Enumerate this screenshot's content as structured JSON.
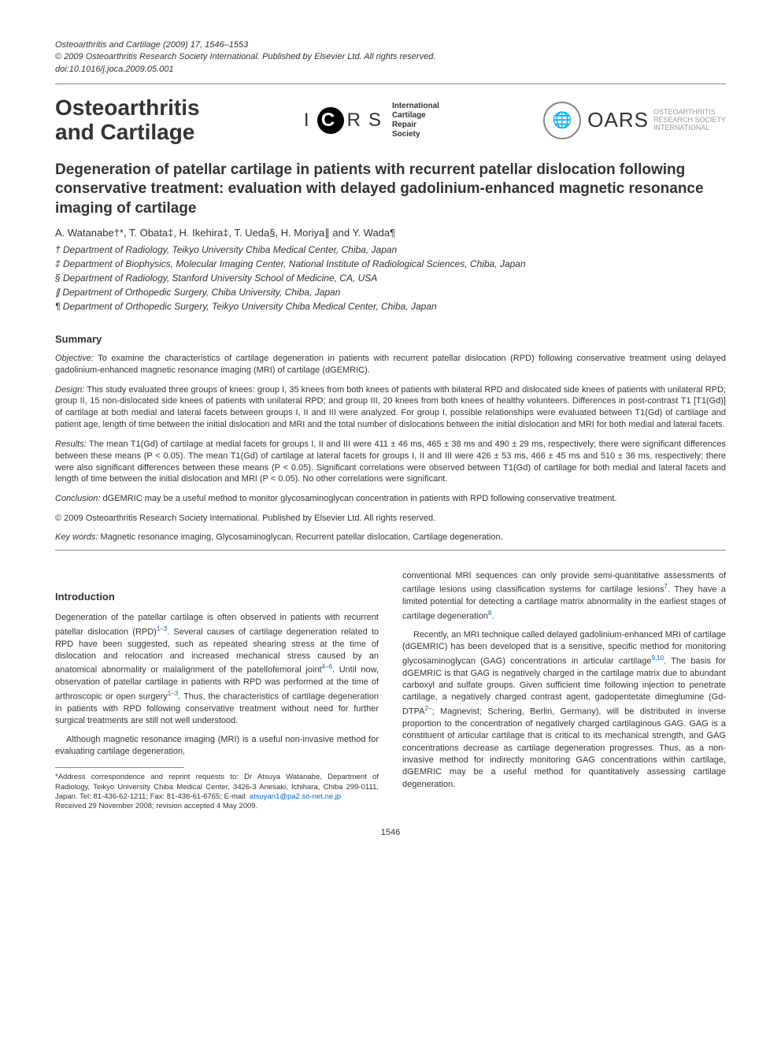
{
  "meta": {
    "citation": "Osteoarthritis and Cartilage (2009) 17, 1546–1553",
    "copyright": "© 2009 Osteoarthritis Research Society International. Published by Elsevier Ltd. All rights reserved.",
    "doi": "doi:10.1016/j.joca.2009.05.001"
  },
  "masthead": {
    "journal_line1": "Osteoarthritis",
    "journal_line2": "and Cartilage",
    "icrs_i": "I",
    "icrs_c": "C",
    "icrs_r": "R",
    "icrs_s": "S",
    "icrs_full_1": "International",
    "icrs_full_2": "Cartilage",
    "icrs_full_3": "Repair",
    "icrs_full_4": "Society",
    "oarsi_globe": "🌐",
    "oarsi_big": "OARS",
    "oarsi_small_1": "OSTEOARTHRITIS",
    "oarsi_small_2": "RESEARCH SOCIETY",
    "oarsi_small_3": "INTERNATIONAL"
  },
  "article": {
    "title": "Degeneration of patellar cartilage in patients with recurrent patellar dislocation following conservative treatment: evaluation with delayed gadolinium-enhanced magnetic resonance imaging of cartilage",
    "authors": "A. Watanabe†*, T. Obata‡, H. Ikehira‡, T. Ueda§, H. Moriya∥ and Y. Wada¶",
    "aff1": "† Department of Radiology, Teikyo University Chiba Medical Center, Chiba, Japan",
    "aff2": "‡ Department of Biophysics, Molecular Imaging Center, National Institute of Radiological Sciences, Chiba, Japan",
    "aff3": "§ Department of Radiology, Stanford University School of Medicine, CA, USA",
    "aff4": "∥ Department of Orthopedic Surgery, Chiba University, Chiba, Japan",
    "aff5": "¶ Department of Orthopedic Surgery, Teikyo University Chiba Medical Center, Chiba, Japan"
  },
  "summary": {
    "heading": "Summary",
    "objective_label": "Objective:",
    "objective": " To examine the characteristics of cartilage degeneration in patients with recurrent patellar dislocation (RPD) following conservative treatment using delayed gadolinium-enhanced magnetic resonance imaging (MRI) of cartilage (dGEMRIC).",
    "design_label": "Design:",
    "design": " This study evaluated three groups of knees: group I, 35 knees from both knees of patients with bilateral RPD and dislocated side knees of patients with unilateral RPD; group II, 15 non-dislocated side knees of patients with unilateral RPD; and group III, 20 knees from both knees of healthy volunteers. Differences in post-contrast T1 [T1(Gd)] of cartilage at both medial and lateral facets between groups I, II and III were analyzed. For group I, possible relationships were evaluated between T1(Gd) of cartilage and patient age, length of time between the initial dislocation and MRI and the total number of dislocations between the initial dislocation and MRI for both medial and lateral facets.",
    "results_label": "Results:",
    "results": " The mean T1(Gd) of cartilage at medial facets for groups I, II and III were 411 ± 46 ms, 465 ± 38 ms and 490 ± 29 ms, respectively; there were significant differences between these means (P < 0.05). The mean T1(Gd) of cartilage at lateral facets for groups I, II and III were 426 ± 53 ms, 466 ± 45 ms and 510 ± 36 ms, respectively; there were also significant differences between these means (P < 0.05). Significant correlations were observed between T1(Gd) of cartilage for both medial and lateral facets and length of time between the initial dislocation and MRI (P < 0.05). No other correlations were significant.",
    "conclusion_label": "Conclusion:",
    "conclusion": " dGEMRIC may be a useful method to monitor glycosaminoglycan concentration in patients with RPD following conservative treatment.",
    "copyright": "© 2009 Osteoarthritis Research Society International. Published by Elsevier Ltd. All rights reserved.",
    "keywords_label": "Key words:",
    "keywords": " Magnetic resonance imaging, Glycosaminoglycan, Recurrent patellar dislocation, Cartilage degeneration."
  },
  "body": {
    "intro_heading": "Introduction",
    "p1a": "Degeneration of the patellar cartilage is often observed in patients with recurrent patellar dislocation (RPD)",
    "p1sup1": "1–3",
    "p1b": ". Several causes of cartilage degeneration related to RPD have been suggested, such as repeated shearing stress at the time of dislocation and relocation and increased mechanical stress caused by an anatomical abnormality or malalignment of the patellofemoral joint",
    "p1sup2": "4–6",
    "p1c": ". Until now, observation of patellar cartilage in patients with RPD was performed at the time of arthroscopic or open surgery",
    "p1sup3": "1–3",
    "p1d": ". Thus, the characteristics of cartilage degeneration in patients with RPD following conservative treatment without need for further surgical treatments are still not well understood.",
    "p2": "Although magnetic resonance imaging (MRI) is a useful non-invasive method for evaluating cartilage degeneration,",
    "p3a": "conventional MRI sequences can only provide semi-quantitative assessments of cartilage lesions using classification systems for cartilage lesions",
    "p3sup1": "7",
    "p3b": ". They have a limited potential for detecting a cartilage matrix abnormality in the earliest stages of cartilage degeneration",
    "p3sup2": "8",
    "p3c": ".",
    "p4a": "Recently, an MRI technique called delayed gadolinium-enhanced MRI of cartilage (dGEMRIC) has been developed that is a sensitive, specific method for monitoring glycosaminoglycan (GAG) concentrations in articular cartilage",
    "p4sup1": "9,10",
    "p4b": ". The basis for dGEMRIC is that GAG is negatively charged in the cartilage matrix due to abundant carboxyl and sulfate groups. Given sufficient time following injection to penetrate cartilage, a negatively charged contrast agent, gadopentetate dimeglumine (Gd-DTPA",
    "p4sup2": "2−",
    "p4c": "; Magnevist; Schering, Berlin, Germany), will be distributed in inverse proportion to the concentration of negatively charged cartilaginous GAG. GAG is a constituent of articular cartilage that is critical to its mechanical strength, and GAG concentrations decrease as cartilage degeneration progresses. Thus, as a non-invasive method for indirectly monitoring GAG concentrations within cartilage, dGEMRIC may be a useful method for quantitatively assessing cartilage degeneration."
  },
  "footnote": {
    "text": "*Address correspondence and reprint requests to: Dr Atsuya Watanabe, Department of Radiology, Teikyo University Chiba Medical Center, 3426-3 Anesaki, Ichihara, Chiba 299-0111, Japan. Tel: 81-436-62-1211; Fax: 81-436-61-6765; E-mail: ",
    "email": "atsuyan1@pa2.so-net.ne.jp",
    "received": "Received 29 November 2008; revision accepted 4 May 2009."
  },
  "page_number": "1546"
}
